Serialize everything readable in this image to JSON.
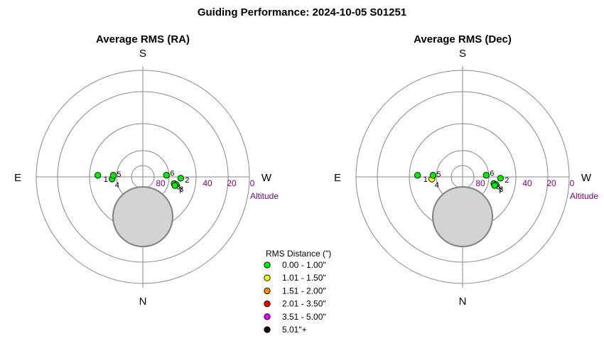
{
  "title": "Guiding Performance: 2024-10-05 S01251",
  "chart_data": [
    {
      "type": "scatter",
      "subtype": "polar-sky",
      "title": "Average RMS (RA)",
      "directions": {
        "top": "S",
        "bottom": "N",
        "left": "E",
        "right": "W"
      },
      "altitude_ticks": [
        "80",
        "40",
        "20",
        "0"
      ],
      "altitude_label": "Altitude",
      "points": [
        {
          "label": "1",
          "azimuth": 92,
          "altitude": 52,
          "color": "#00ee00"
        },
        {
          "label": "4",
          "azimuth": 86,
          "altitude": 64,
          "color": "#00ee00"
        },
        {
          "label": "5",
          "azimuth": 93,
          "altitude": 65,
          "color": "#00ee00"
        },
        {
          "label": "6",
          "azimuth": 266,
          "altitude": 70,
          "color": "#00ee00"
        },
        {
          "label": "2",
          "azimuth": 272,
          "altitude": 58,
          "color": "#00ee00"
        },
        {
          "label": "3",
          "azimuth": 282,
          "altitude": 63,
          "color": "#00ee00"
        },
        {
          "label": "8",
          "azimuth": 283,
          "altitude": 61,
          "color": "#00ee00"
        },
        {
          "label": "7",
          "azimuth": 285,
          "altitude": 62,
          "color": "#00ee00"
        }
      ]
    },
    {
      "type": "scatter",
      "subtype": "polar-sky",
      "title": "Average RMS (Dec)",
      "directions": {
        "top": "S",
        "bottom": "N",
        "left": "E",
        "right": "W"
      },
      "altitude_ticks": [
        "80",
        "40",
        "20",
        "0"
      ],
      "altitude_label": "Altitude",
      "points": [
        {
          "label": "1",
          "azimuth": 92,
          "altitude": 52,
          "color": "#00ee00"
        },
        {
          "label": "4",
          "azimuth": 86,
          "altitude": 64,
          "color": "#ffff00"
        },
        {
          "label": "5",
          "azimuth": 93,
          "altitude": 65,
          "color": "#00ee00"
        },
        {
          "label": "6",
          "azimuth": 266,
          "altitude": 70,
          "color": "#00ee00"
        },
        {
          "label": "2",
          "azimuth": 272,
          "altitude": 58,
          "color": "#00ee00"
        },
        {
          "label": "3",
          "azimuth": 282,
          "altitude": 63,
          "color": "#00ee00"
        },
        {
          "label": "8",
          "azimuth": 283,
          "altitude": 61,
          "color": "#00ee00"
        },
        {
          "label": "7",
          "azimuth": 285,
          "altitude": 62,
          "color": "#00ee00"
        }
      ]
    }
  ],
  "legend": {
    "title": "RMS Distance (\")",
    "items": [
      {
        "label": "0.00 - 1.00\"",
        "color": "#00ee00"
      },
      {
        "label": "1.01 - 1.50\"",
        "color": "#ffff00"
      },
      {
        "label": "1.51 - 2.00\"",
        "color": "#f09000"
      },
      {
        "label": "2.01 - 3.50\"",
        "color": "#ee0000"
      },
      {
        "label": "3.51 - 5.00\"",
        "color": "#ee00ee"
      },
      {
        "label": "5.01\"+",
        "color": "#000000"
      }
    ]
  }
}
